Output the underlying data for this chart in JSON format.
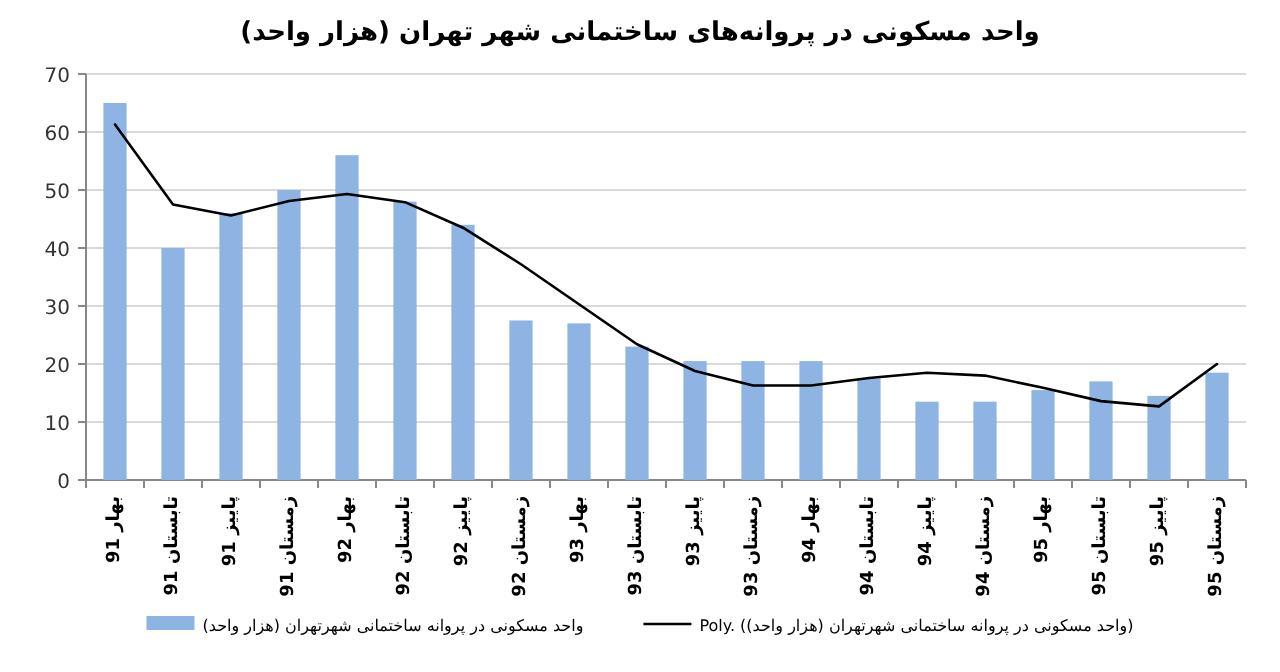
{
  "chart_data": {
    "type": "bar",
    "title": "واحد مسکونی در پروانه‌های ساختمانی شهر تهران (هزار واحد)",
    "categories": [
      "بهار 91",
      "تابستان 91",
      "پاییز 91",
      "زمستان 91",
      "بهار 92",
      "تابستان 92",
      "پاییز 92",
      "زمستان 92",
      "بهار 93",
      "تابستان 93",
      "پاییز 93",
      "زمستان 93",
      "بهار 94",
      "تابستان 94",
      "پاییز 94",
      "زمستان 94",
      "بهار 95",
      "تابستان 95",
      "پاییز 95",
      "زمستان 95"
    ],
    "series": [
      {
        "name": "(هزار واحد) واحد مسکونی در پروانه ساختمانی شهرتهران",
        "color": "#8eb4e3",
        "values": [
          65,
          40,
          46,
          50,
          56,
          48,
          44,
          27.5,
          27,
          23,
          20.5,
          20.5,
          20.5,
          17.5,
          13.5,
          13.5,
          15.5,
          17,
          14.5,
          18.5
        ]
      },
      {
        "type": "line",
        "name": "Poly. ((هزار واحد) واحد مسکونی در پروانه ساختمانی شهرتهران)",
        "color": "#000000",
        "values": [
          61.3,
          47.5,
          45.6,
          48.1,
          49.3,
          47.9,
          43.5,
          37.2,
          30.3,
          23.4,
          18.8,
          16.3,
          16.3,
          17.6,
          18.5,
          18,
          15.9,
          13.6,
          12.7,
          20
        ]
      }
    ],
    "ylim": [
      0,
      70
    ],
    "yticks": [
      0,
      10,
      20,
      30,
      40,
      50,
      60,
      70
    ],
    "grid": "y",
    "legend": "bottom",
    "marker": "none",
    "line_style": "solid"
  }
}
